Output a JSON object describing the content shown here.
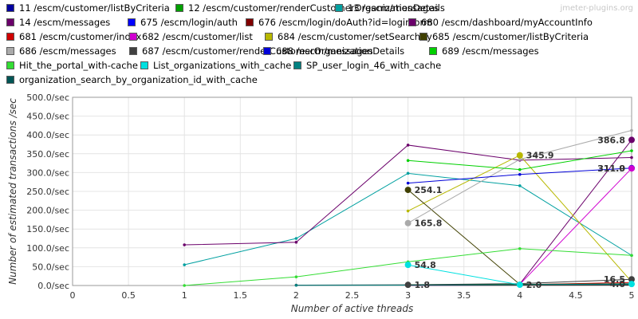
{
  "brand": "jmeter-plugins.org",
  "chart_data": {
    "type": "line",
    "xlabel": "Number of active threads",
    "ylabel": "Number of estimated transactions /sec",
    "xlim": [
      0,
      5
    ],
    "ylim": [
      0,
      500
    ],
    "x_ticks": [
      "0",
      "0.5",
      "1",
      "1.5",
      "2",
      "2.5",
      "3",
      "3.5",
      "4",
      "4.5",
      "5"
    ],
    "y_ticks": [
      "0.0/sec",
      "50.0/sec",
      "100.0/sec",
      "150.0/sec",
      "200.0/sec",
      "250.0/sec",
      "300.0/sec",
      "350.0/sec",
      "400.0/sec",
      "450.0/sec",
      "500.0/sec"
    ],
    "grid": true,
    "legend_position": "top",
    "series": [
      {
        "name": "11 /escm/customer/listByCriteria",
        "color": "#0000a0",
        "x": [
          3,
          4,
          5
        ],
        "y": [
          1,
          2,
          3
        ]
      },
      {
        "name": "12 /escm/customer/renderCustomerOrganizationDetails",
        "color": "#00a000",
        "x": [
          3,
          4,
          5
        ],
        "y": [
          2,
          3,
          4
        ]
      },
      {
        "name": "13 /escm/messages",
        "color": "#00a0a0",
        "x": [
          1,
          2,
          3,
          4,
          5
        ],
        "y": [
          55,
          125,
          298,
          265,
          80
        ]
      },
      {
        "name": "14 /escm/messages",
        "color": "#6b006b",
        "x": [
          1,
          2,
          3,
          4,
          5
        ],
        "y": [
          108,
          115,
          373,
          333,
          340
        ]
      },
      {
        "name": "675 /escm/login/auth",
        "color": "#0000ff",
        "x": [
          3,
          4,
          5
        ],
        "y": [
          0.5,
          1,
          1.5
        ]
      },
      {
        "name": "676 /escm/login/doAuth?id=loginform",
        "color": "#800000",
        "x": [
          3,
          4,
          5
        ],
        "y": [
          0.5,
          0.8,
          1
        ]
      },
      {
        "name": "680 /escm/dashboard/myAccountInfo",
        "color": "#6b006b",
        "x": [
          4,
          5
        ],
        "y": [
          4,
          386.8
        ]
      },
      {
        "name": "681 /escm/customer/index",
        "color": "#d00000",
        "x": [
          4,
          5
        ],
        "y": [
          2,
          8
        ]
      },
      {
        "name": "682 /escm/customer/list",
        "color": "#d000d0",
        "x": [
          4,
          5
        ],
        "y": [
          3,
          311.0
        ]
      },
      {
        "name": "684 /escm/customer/setSearchBy",
        "color": "#b8b800",
        "x": [
          3,
          4,
          5
        ],
        "y": [
          198,
          345.9,
          10
        ]
      },
      {
        "name": "685 /escm/customer/listByCriteria",
        "color": "#404000",
        "x": [
          3,
          4,
          5
        ],
        "y": [
          254.1,
          3,
          5
        ]
      },
      {
        "name": "686 /escm/messages",
        "color": "#aaaaaa",
        "x": [
          3,
          4,
          5
        ],
        "y": [
          165.8,
          335,
          412
        ]
      },
      {
        "name": "687 /escm/customer/renderCustomerOrganizationDetails",
        "color": "#404040",
        "x": [
          2,
          3,
          4,
          5
        ],
        "y": [
          1,
          1.8,
          5,
          16.5
        ]
      },
      {
        "name": "688 /escm/messages",
        "color": "#0000d8",
        "x": [
          3,
          4,
          5
        ],
        "y": [
          272,
          295,
          311.9
        ]
      },
      {
        "name": "689 /escm/messages",
        "color": "#00d000",
        "x": [
          3,
          4,
          5
        ],
        "y": [
          332,
          308,
          358
        ]
      },
      {
        "name": "Hit_the_portal_with-cache",
        "color": "#33dd33",
        "x": [
          1,
          2,
          3,
          4,
          5
        ],
        "y": [
          0,
          23,
          63,
          98,
          80
        ]
      },
      {
        "name": "List_organizations_with_cache",
        "color": "#00e0e0",
        "x": [
          3,
          4,
          5
        ],
        "y": [
          54.8,
          2,
          4
        ]
      },
      {
        "name": "SP_user_login_46_with_cache",
        "color": "#008080",
        "x": [
          2,
          3,
          4,
          5
        ],
        "y": [
          0.5,
          1,
          2,
          3
        ]
      },
      {
        "name": "organization_search_by_organization_id_with_cache",
        "color": "#005555",
        "x": [
          3,
          4,
          5
        ],
        "y": [
          1,
          1.5,
          2
        ]
      }
    ],
    "annotations": [
      {
        "text": "386.8",
        "x": 5,
        "y": 386.8,
        "series": 6
      },
      {
        "text": "345.9",
        "x": 4,
        "y": 345.9,
        "series": 9
      },
      {
        "text": "311.9",
        "x": 5,
        "y": 311.9,
        "series": 13
      },
      {
        "text": "311.0",
        "x": 5,
        "y": 311.0,
        "series": 8
      },
      {
        "text": "254.1",
        "x": 3,
        "y": 254.1,
        "series": 10
      },
      {
        "text": "165.8",
        "x": 3,
        "y": 165.8,
        "series": 11
      },
      {
        "text": "54.8",
        "x": 3,
        "y": 54.8,
        "series": 16
      },
      {
        "text": "1.8",
        "x": 3,
        "y": 1.8,
        "series": 12
      },
      {
        "text": "16.5",
        "x": 5,
        "y": 16.5,
        "series": 12
      },
      {
        "text": "4.0",
        "x": 5,
        "y": 4,
        "series": 16
      },
      {
        "text": "2.0",
        "x": 4,
        "y": 2,
        "series": 16
      }
    ]
  }
}
